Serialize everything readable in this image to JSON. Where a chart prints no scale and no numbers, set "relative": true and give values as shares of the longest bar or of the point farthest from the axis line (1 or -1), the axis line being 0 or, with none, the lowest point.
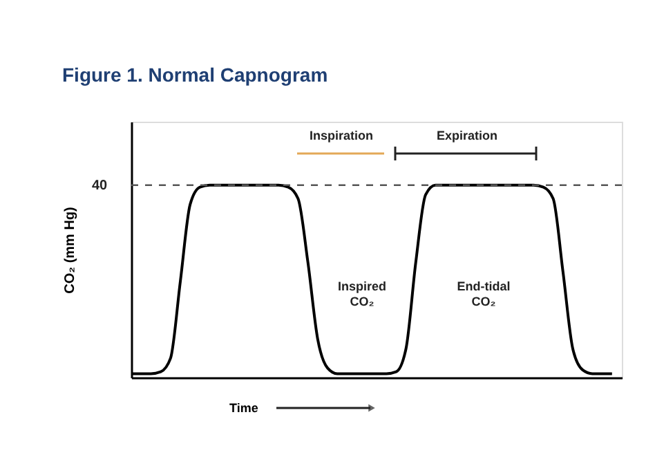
{
  "chart_data": {
    "type": "line",
    "title": "Figure 1. Normal Capnogram",
    "ylabel": "CO₂ (mm Hg)",
    "xlabel": "Time",
    "relative": true,
    "categories": [
      null,
      null,
      null,
      null,
      null,
      null,
      null,
      null,
      null,
      null,
      null,
      null,
      null,
      null,
      null,
      null,
      null,
      null,
      null,
      null,
      null,
      null,
      null,
      null,
      null,
      null,
      null,
      null,
      null,
      null,
      null,
      null,
      null,
      null,
      null,
      null,
      null,
      null,
      null,
      null,
      null,
      null,
      null,
      null,
      null,
      null,
      null,
      null,
      null,
      null
    ],
    "series": [
      {
        "color": "#000000",
        "values": [
          0.02,
          0.02,
          0.02,
          0.03,
          0.1,
          0.5,
          0.9,
          0.99,
          1,
          1,
          1,
          1,
          1,
          1,
          1,
          1,
          0.99,
          0.93,
          0.6,
          0.2,
          0.05,
          0.02,
          0.02,
          0.02,
          0.02,
          0.02,
          0.02,
          0.03,
          0.15,
          0.6,
          0.95,
          1,
          1,
          1,
          1,
          1,
          1,
          1,
          1,
          1,
          1,
          1,
          0.99,
          0.93,
          0.55,
          0.15,
          0.04,
          0.02,
          0.02,
          0.02
        ]
      }
    ],
    "ref_lines": [
      {
        "axis": "y",
        "value": 1,
        "color": "#555555",
        "line_style": "dashed"
      }
    ],
    "annotations": [
      "Inspiration",
      "Expiration",
      "Inspired CO₂",
      "End-tidal CO₂",
      "40"
    ],
    "grid": false,
    "marker": "none",
    "line_style": "solid"
  }
}
